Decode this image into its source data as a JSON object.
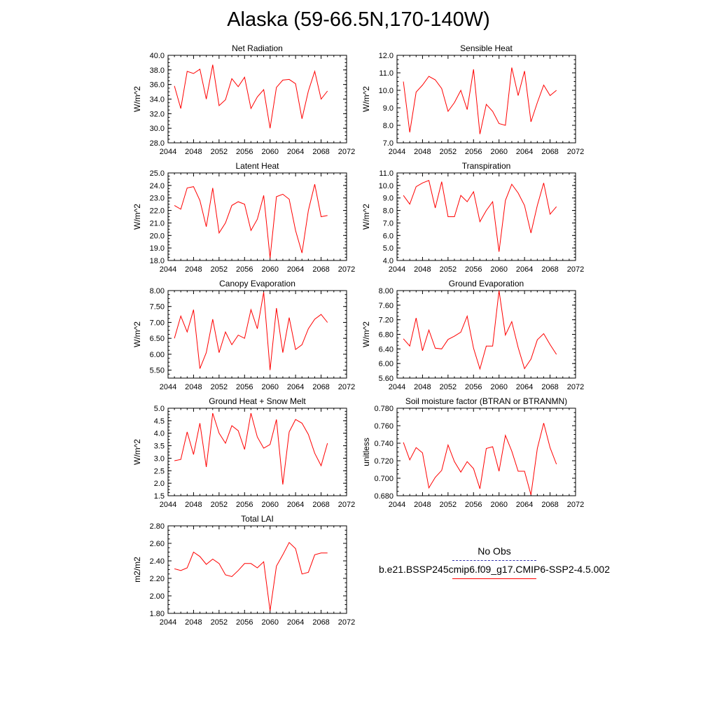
{
  "title": "Alaska (59-66.5N,170-140W)",
  "legend": {
    "obs_label": "No Obs",
    "obs_color": "#3333aa",
    "model_label": "b.e21.BSSP245cmip6.f09_g17.CMIP6-SSP2-4.5.002",
    "model_color": "#ff0000"
  },
  "chart_data": [
    {
      "type": "line",
      "title": "Net Radiation",
      "ylabel": "W/m^2",
      "xlim": [
        2044,
        2072
      ],
      "ylim": [
        28.0,
        40.0
      ],
      "xticks": [
        2044,
        2048,
        2052,
        2056,
        2060,
        2064,
        2068,
        2072
      ],
      "yticks": [
        28.0,
        30.0,
        32.0,
        34.0,
        36.0,
        38.0,
        40.0
      ],
      "ytick_decimals": 1,
      "x": [
        2045,
        2046,
        2047,
        2048,
        2049,
        2050,
        2051,
        2052,
        2053,
        2054,
        2055,
        2056,
        2057,
        2058,
        2059,
        2060,
        2061,
        2062,
        2063,
        2064,
        2065,
        2066,
        2067,
        2068,
        2069
      ],
      "series": [
        {
          "values": [
            35.8,
            32.7,
            37.8,
            37.5,
            38.1,
            34.0,
            38.7,
            33.1,
            33.9,
            36.8,
            35.7,
            37.0,
            32.7,
            34.3,
            35.3,
            30.0,
            35.6,
            36.6,
            36.7,
            36.1,
            31.3,
            35.1,
            37.8,
            34.0,
            35.1
          ]
        }
      ]
    },
    {
      "type": "line",
      "title": "Sensible Heat",
      "ylabel": "W/m^2",
      "xlim": [
        2044,
        2072
      ],
      "ylim": [
        7.0,
        12.0
      ],
      "xticks": [
        2044,
        2048,
        2052,
        2056,
        2060,
        2064,
        2068,
        2072
      ],
      "yticks": [
        7.0,
        8.0,
        9.0,
        10.0,
        11.0,
        12.0
      ],
      "ytick_decimals": 1,
      "x": [
        2045,
        2046,
        2047,
        2048,
        2049,
        2050,
        2051,
        2052,
        2053,
        2054,
        2055,
        2056,
        2057,
        2058,
        2059,
        2060,
        2061,
        2062,
        2063,
        2064,
        2065,
        2066,
        2067,
        2068,
        2069
      ],
      "series": [
        {
          "values": [
            10.5,
            7.6,
            9.9,
            10.3,
            10.8,
            10.6,
            10.1,
            8.8,
            9.3,
            10.0,
            8.9,
            11.2,
            7.5,
            9.2,
            8.8,
            8.1,
            8.0,
            11.3,
            9.7,
            11.1,
            8.2,
            9.3,
            10.3,
            9.7,
            10.0
          ]
        }
      ]
    },
    {
      "type": "line",
      "title": "Latent Heat",
      "ylabel": "W/m^2",
      "xlim": [
        2044,
        2072
      ],
      "ylim": [
        18.0,
        25.0
      ],
      "xticks": [
        2044,
        2048,
        2052,
        2056,
        2060,
        2064,
        2068,
        2072
      ],
      "yticks": [
        18.0,
        19.0,
        20.0,
        21.0,
        22.0,
        23.0,
        24.0,
        25.0
      ],
      "ytick_decimals": 1,
      "x": [
        2045,
        2046,
        2047,
        2048,
        2049,
        2050,
        2051,
        2052,
        2053,
        2054,
        2055,
        2056,
        2057,
        2058,
        2059,
        2060,
        2061,
        2062,
        2063,
        2064,
        2065,
        2066,
        2067,
        2068,
        2069
      ],
      "series": [
        {
          "values": [
            22.4,
            22.1,
            23.8,
            23.9,
            22.8,
            20.7,
            23.8,
            20.2,
            21.0,
            22.4,
            22.7,
            22.5,
            20.4,
            21.3,
            23.2,
            18.2,
            23.1,
            23.3,
            22.9,
            20.4,
            18.6,
            22.0,
            24.1,
            21.5,
            21.6
          ]
        }
      ]
    },
    {
      "type": "line",
      "title": "Transpiration",
      "ylabel": "W/m^2",
      "xlim": [
        2044,
        2072
      ],
      "ylim": [
        4.0,
        11.0
      ],
      "xticks": [
        2044,
        2048,
        2052,
        2056,
        2060,
        2064,
        2068,
        2072
      ],
      "yticks": [
        4.0,
        5.0,
        6.0,
        7.0,
        8.0,
        9.0,
        10.0,
        11.0
      ],
      "ytick_decimals": 1,
      "x": [
        2045,
        2046,
        2047,
        2048,
        2049,
        2050,
        2051,
        2052,
        2053,
        2054,
        2055,
        2056,
        2057,
        2058,
        2059,
        2060,
        2061,
        2062,
        2063,
        2064,
        2065,
        2066,
        2067,
        2068,
        2069
      ],
      "series": [
        {
          "values": [
            9.2,
            8.5,
            9.9,
            10.2,
            10.4,
            8.2,
            10.3,
            7.5,
            7.5,
            9.2,
            8.7,
            9.5,
            7.1,
            8.0,
            8.7,
            4.7,
            8.8,
            10.1,
            9.4,
            8.4,
            6.2,
            8.4,
            10.2,
            7.7,
            8.3
          ]
        }
      ]
    },
    {
      "type": "line",
      "title": "Canopy Evaporation",
      "ylabel": "W/m^2",
      "xlim": [
        2044,
        2072
      ],
      "ylim": [
        5.25,
        8.0
      ],
      "xticks": [
        2044,
        2048,
        2052,
        2056,
        2060,
        2064,
        2068,
        2072
      ],
      "yticks": [
        5.5,
        6.0,
        6.5,
        7.0,
        7.5,
        8.0
      ],
      "ytick_decimals": 2,
      "x": [
        2045,
        2046,
        2047,
        2048,
        2049,
        2050,
        2051,
        2052,
        2053,
        2054,
        2055,
        2056,
        2057,
        2058,
        2059,
        2060,
        2061,
        2062,
        2063,
        2064,
        2065,
        2066,
        2067,
        2068,
        2069
      ],
      "series": [
        {
          "values": [
            6.5,
            7.2,
            6.7,
            7.4,
            5.55,
            6.05,
            7.1,
            6.05,
            6.7,
            6.3,
            6.6,
            6.5,
            7.4,
            6.8,
            7.95,
            5.5,
            7.45,
            6.05,
            7.15,
            6.15,
            6.3,
            6.8,
            7.1,
            7.25,
            7.0
          ]
        }
      ]
    },
    {
      "type": "line",
      "title": "Ground Evaporation",
      "ylabel": "W/m^2",
      "xlim": [
        2044,
        2072
      ],
      "ylim": [
        5.6,
        8.0
      ],
      "xticks": [
        2044,
        2048,
        2052,
        2056,
        2060,
        2064,
        2068,
        2072
      ],
      "yticks": [
        5.6,
        6.0,
        6.4,
        6.8,
        7.2,
        7.6,
        8.0
      ],
      "ytick_decimals": 2,
      "x": [
        2045,
        2046,
        2047,
        2048,
        2049,
        2050,
        2051,
        2052,
        2053,
        2054,
        2055,
        2056,
        2057,
        2058,
        2059,
        2060,
        2061,
        2062,
        2063,
        2064,
        2065,
        2066,
        2067,
        2068,
        2069
      ],
      "series": [
        {
          "values": [
            6.68,
            6.48,
            7.25,
            6.35,
            6.92,
            6.42,
            6.4,
            6.66,
            6.75,
            6.86,
            7.3,
            6.42,
            5.85,
            6.48,
            6.48,
            8.0,
            6.78,
            7.15,
            6.44,
            5.86,
            6.12,
            6.65,
            6.82,
            6.52,
            6.25
          ]
        }
      ]
    },
    {
      "type": "line",
      "title": "Ground Heat + Snow Melt",
      "ylabel": "W/m^2",
      "xlim": [
        2044,
        2072
      ],
      "ylim": [
        1.5,
        5.0
      ],
      "xticks": [
        2044,
        2048,
        2052,
        2056,
        2060,
        2064,
        2068,
        2072
      ],
      "yticks": [
        1.5,
        2.0,
        2.5,
        3.0,
        3.5,
        4.0,
        4.5,
        5.0
      ],
      "ytick_decimals": 1,
      "x": [
        2045,
        2046,
        2047,
        2048,
        2049,
        2050,
        2051,
        2052,
        2053,
        2054,
        2055,
        2056,
        2057,
        2058,
        2059,
        2060,
        2061,
        2062,
        2063,
        2064,
        2065,
        2066,
        2067,
        2068,
        2069
      ],
      "series": [
        {
          "values": [
            2.9,
            2.95,
            4.05,
            3.15,
            4.4,
            2.65,
            4.8,
            4.0,
            3.6,
            4.3,
            4.1,
            3.35,
            4.8,
            3.85,
            3.4,
            3.55,
            4.55,
            1.95,
            4.05,
            4.55,
            4.4,
            3.95,
            3.2,
            2.7,
            3.6
          ]
        }
      ]
    },
    {
      "type": "line",
      "title": "Soil moisture factor (BTRAN or BTRANMN)",
      "ylabel": "unitless",
      "xlim": [
        2044,
        2072
      ],
      "ylim": [
        0.68,
        0.78
      ],
      "xticks": [
        2044,
        2048,
        2052,
        2056,
        2060,
        2064,
        2068,
        2072
      ],
      "yticks": [
        0.68,
        0.7,
        0.72,
        0.74,
        0.76,
        0.78
      ],
      "ytick_decimals": 3,
      "x": [
        2045,
        2046,
        2047,
        2048,
        2049,
        2050,
        2051,
        2052,
        2053,
        2054,
        2055,
        2056,
        2057,
        2058,
        2059,
        2060,
        2061,
        2062,
        2063,
        2064,
        2065,
        2066,
        2067,
        2068,
        2069
      ],
      "series": [
        {
          "values": [
            0.741,
            0.721,
            0.735,
            0.729,
            0.689,
            0.701,
            0.709,
            0.738,
            0.719,
            0.707,
            0.719,
            0.711,
            0.688,
            0.734,
            0.736,
            0.708,
            0.749,
            0.731,
            0.708,
            0.708,
            0.681,
            0.734,
            0.763,
            0.735,
            0.716
          ]
        }
      ]
    },
    {
      "type": "line",
      "title": "Total LAI",
      "ylabel": "m2/m2",
      "xlim": [
        2044,
        2072
      ],
      "ylim": [
        1.8,
        2.8
      ],
      "xticks": [
        2044,
        2048,
        2052,
        2056,
        2060,
        2064,
        2068,
        2072
      ],
      "yticks": [
        1.8,
        2.0,
        2.2,
        2.4,
        2.6,
        2.8
      ],
      "ytick_decimals": 2,
      "x": [
        2045,
        2046,
        2047,
        2048,
        2049,
        2050,
        2051,
        2052,
        2053,
        2054,
        2055,
        2056,
        2057,
        2058,
        2059,
        2060,
        2061,
        2062,
        2063,
        2064,
        2065,
        2066,
        2067,
        2068,
        2069
      ],
      "series": [
        {
          "values": [
            2.31,
            2.29,
            2.32,
            2.5,
            2.45,
            2.36,
            2.42,
            2.37,
            2.24,
            2.22,
            2.29,
            2.37,
            2.37,
            2.32,
            2.39,
            1.83,
            2.34,
            2.47,
            2.61,
            2.54,
            2.25,
            2.27,
            2.47,
            2.49,
            2.49
          ]
        }
      ]
    }
  ]
}
